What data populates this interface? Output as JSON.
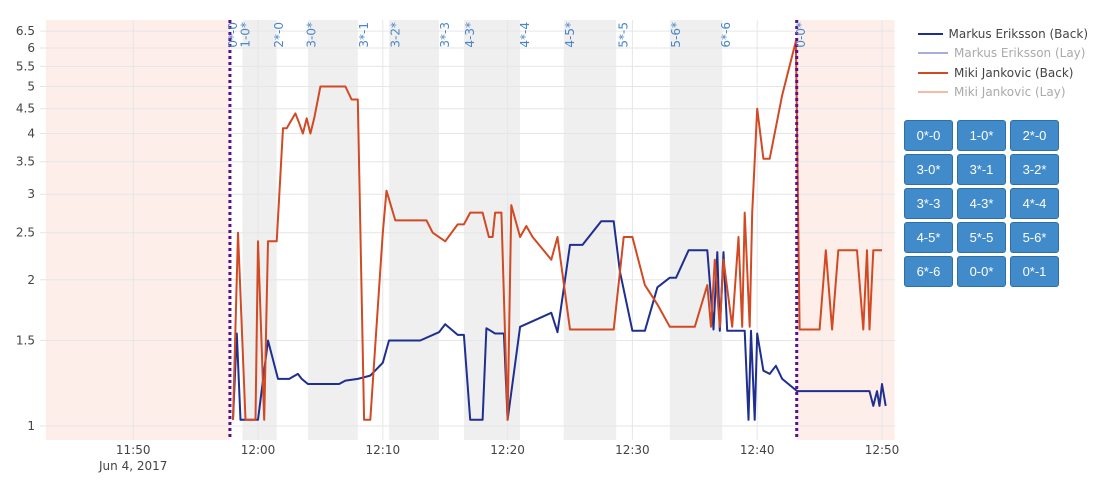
{
  "chart_data": {
    "type": "line",
    "y_scale": "log",
    "ylim": [
      0.97,
      6.8
    ],
    "y_ticks": [
      "1",
      "1.5",
      "2",
      "2.5",
      "3",
      "3.5",
      "4",
      "4.5",
      "5",
      "5.5",
      "6",
      "6.5"
    ],
    "x_ticks": [
      {
        "label": "11:50",
        "sublabel": "Jun 4, 2017",
        "t": "11:50"
      },
      {
        "label": "12:00",
        "t": "12:00"
      },
      {
        "label": "12:10",
        "t": "12:10"
      },
      {
        "label": "12:20",
        "t": "12:20"
      },
      {
        "label": "12:30",
        "t": "12:30"
      },
      {
        "label": "12:40",
        "t": "12:40"
      },
      {
        "label": "12:50",
        "t": "12:50"
      }
    ],
    "xlim": [
      "11:43",
      "12:51"
    ],
    "grid": true,
    "legend_position": "right",
    "inplay_markers": [
      "11:57:45",
      "12:43:10"
    ],
    "preplay_regions": [
      [
        "11:43",
        "11:57:45"
      ],
      [
        "12:43:10",
        "12:51"
      ]
    ],
    "shaded_regions": [
      [
        "11:58:45",
        "12:01:30"
      ],
      [
        "12:04",
        "12:08"
      ],
      [
        "12:10.5",
        "12:14.5"
      ],
      [
        "12:16.5",
        "12:21"
      ],
      [
        "12:24.5",
        "12:28.7"
      ],
      [
        "12:33",
        "12:37.2"
      ]
    ],
    "score_labels": [
      {
        "t": "11:58",
        "label": "0*-0"
      },
      {
        "t": "11:59",
        "label": "1-0*"
      },
      {
        "t": "12:01.7",
        "label": "2*-0"
      },
      {
        "t": "12:04.3",
        "label": "3-0*"
      },
      {
        "t": "12:08.5",
        "label": "3*-1"
      },
      {
        "t": "12:11",
        "label": "3-2*"
      },
      {
        "t": "12:15",
        "label": "3*-3"
      },
      {
        "t": "12:17",
        "label": "4-3*"
      },
      {
        "t": "12:21.4",
        "label": "4*-4"
      },
      {
        "t": "12:25",
        "label": "4-5*"
      },
      {
        "t": "12:29.3",
        "label": "5*-5"
      },
      {
        "t": "12:33.5",
        "label": "5-6*"
      },
      {
        "t": "12:37.5",
        "label": "6*-6"
      },
      {
        "t": "12:43.5",
        "label": "0-0*"
      }
    ],
    "series": [
      {
        "name": "Markus Eriksson (Back)",
        "color": "#1f2f8f",
        "points": [
          [
            "11:58",
            1.03
          ],
          [
            "11:58.3",
            1.55
          ],
          [
            "11:58.6",
            1.03
          ],
          [
            "12:00",
            1.03
          ],
          [
            "12:00.8",
            1.5
          ],
          [
            "12:01.6",
            1.25
          ],
          [
            "12:02.5",
            1.25
          ],
          [
            "12:03.2",
            1.28
          ],
          [
            "12:03.5",
            1.25
          ],
          [
            "12:04",
            1.22
          ],
          [
            "12:06.5",
            1.22
          ],
          [
            "12:07",
            1.24
          ],
          [
            "12:08",
            1.25
          ],
          [
            "12:09",
            1.27
          ],
          [
            "12:10",
            1.35
          ],
          [
            "12:10.5",
            1.5
          ],
          [
            "12:13",
            1.5
          ],
          [
            "12:14.5",
            1.56
          ],
          [
            "12:15",
            1.62
          ],
          [
            "12:16",
            1.54
          ],
          [
            "12:16.5",
            1.54
          ],
          [
            "12:17",
            1.03
          ],
          [
            "12:18",
            1.03
          ],
          [
            "12:18.3",
            1.59
          ],
          [
            "12:19",
            1.55
          ],
          [
            "12:19.7",
            1.55
          ],
          [
            "12:20",
            1.03
          ],
          [
            "12:21",
            1.6
          ],
          [
            "12:23.5",
            1.71
          ],
          [
            "12:24",
            1.56
          ],
          [
            "12:25",
            2.36
          ],
          [
            "12:26",
            2.36
          ],
          [
            "12:27.5",
            2.64
          ],
          [
            "12:28.5",
            2.64
          ],
          [
            "12:29",
            2.08
          ],
          [
            "12:30",
            1.57
          ],
          [
            "12:31",
            1.57
          ],
          [
            "12:32",
            1.93
          ],
          [
            "12:33",
            2.02
          ],
          [
            "12:33.5",
            2.02
          ],
          [
            "12:34.5",
            2.3
          ],
          [
            "12:36",
            2.3
          ],
          [
            "12:36.5",
            1.58
          ],
          [
            "12:36.8",
            2.28
          ],
          [
            "12:37",
            1.57
          ],
          [
            "12:37.3",
            2.28
          ],
          [
            "12:37.6",
            1.57
          ],
          [
            "12:39",
            1.57
          ],
          [
            "12:39.3",
            1.03
          ],
          [
            "12:39.5",
            1.57
          ],
          [
            "12:39.8",
            1.03
          ],
          [
            "12:40",
            1.55
          ],
          [
            "12:40.5",
            1.3
          ],
          [
            "12:41",
            1.28
          ],
          [
            "12:41.5",
            1.33
          ],
          [
            "12:42",
            1.25
          ],
          [
            "12:43.2",
            1.18
          ],
          [
            "12:48",
            1.18
          ],
          [
            "12:49",
            1.18
          ],
          [
            "12:49.3",
            1.1
          ],
          [
            "12:49.6",
            1.18
          ],
          [
            "12:49.8",
            1.1
          ],
          [
            "12:50",
            1.22
          ],
          [
            "12:50.3",
            1.1
          ]
        ]
      },
      {
        "name": "Markus Eriksson (Lay)",
        "color": "#a7acd8",
        "dim": true,
        "points": []
      },
      {
        "name": "Miki Jankovic (Back)",
        "color": "#d14a24",
        "points": [
          [
            "11:58",
            1.03
          ],
          [
            "11:58.4",
            2.5
          ],
          [
            "11:59",
            1.03
          ],
          [
            "11:59.8",
            1.03
          ],
          [
            "12:00",
            2.4
          ],
          [
            "12:00.5",
            1.03
          ],
          [
            "12:00.8",
            2.4
          ],
          [
            "12:01.5",
            2.4
          ],
          [
            "12:02",
            4.1
          ],
          [
            "12:02.3",
            4.1
          ],
          [
            "12:03",
            4.4
          ],
          [
            "12:03.3",
            4.2
          ],
          [
            "12:03.6",
            4.0
          ],
          [
            "12:03.9",
            4.3
          ],
          [
            "12:04.2",
            4.0
          ],
          [
            "12:04.5",
            4.3
          ],
          [
            "12:05",
            5.0
          ],
          [
            "12:07",
            5.0
          ],
          [
            "12:07.5",
            4.7
          ],
          [
            "12:08",
            4.7
          ],
          [
            "12:08.5",
            1.03
          ],
          [
            "12:09",
            1.03
          ],
          [
            "12:10",
            2.5
          ],
          [
            "12:10.3",
            3.05
          ],
          [
            "12:11",
            2.65
          ],
          [
            "12:13.5",
            2.65
          ],
          [
            "12:14",
            2.5
          ],
          [
            "12:15",
            2.4
          ],
          [
            "12:16",
            2.6
          ],
          [
            "12:16.5",
            2.6
          ],
          [
            "12:17",
            2.75
          ],
          [
            "12:18",
            2.75
          ],
          [
            "12:18.5",
            2.45
          ],
          [
            "12:18.8",
            2.45
          ],
          [
            "12:19",
            2.75
          ],
          [
            "12:19.5",
            2.75
          ],
          [
            "12:20",
            1.03
          ],
          [
            "12:20.3",
            2.85
          ],
          [
            "12:21",
            2.45
          ],
          [
            "12:21.5",
            2.58
          ],
          [
            "12:22",
            2.45
          ],
          [
            "12:23.5",
            2.2
          ],
          [
            "12:24",
            2.45
          ],
          [
            "12:25",
            1.58
          ],
          [
            "12:27.5",
            1.58
          ],
          [
            "12:28.5",
            1.58
          ],
          [
            "12:29.3",
            2.45
          ],
          [
            "12:30",
            2.45
          ],
          [
            "12:31",
            1.95
          ],
          [
            "12:32",
            1.78
          ],
          [
            "12:33",
            1.6
          ],
          [
            "12:34",
            1.6
          ],
          [
            "12:35",
            1.6
          ],
          [
            "12:36",
            1.95
          ],
          [
            "12:36.3",
            1.6
          ],
          [
            "12:36.6",
            2.2
          ],
          [
            "12:37",
            1.6
          ],
          [
            "12:37.3",
            2.2
          ],
          [
            "12:38",
            1.6
          ],
          [
            "12:38.5",
            2.45
          ],
          [
            "12:38.8",
            1.6
          ],
          [
            "12:39",
            2.75
          ],
          [
            "12:39.4",
            1.6
          ],
          [
            "12:39.6",
            2.75
          ],
          [
            "12:40",
            4.5
          ],
          [
            "12:40.5",
            3.55
          ],
          [
            "12:41",
            3.55
          ],
          [
            "12:42",
            4.8
          ],
          [
            "12:43.1",
            6.2
          ],
          [
            "12:43.4",
            1.58
          ],
          [
            "12:45",
            1.58
          ],
          [
            "12:45.5",
            2.3
          ],
          [
            "12:46",
            1.58
          ],
          [
            "12:46.5",
            2.3
          ],
          [
            "12:48",
            2.3
          ],
          [
            "12:48.5",
            1.58
          ],
          [
            "12:48.8",
            2.3
          ],
          [
            "12:49",
            1.58
          ],
          [
            "12:49.3",
            2.3
          ],
          [
            "12:50",
            2.3
          ]
        ]
      },
      {
        "name": "Miki Jankovic (Lay)",
        "color": "#f6b9a3",
        "dim": true,
        "points": []
      }
    ]
  },
  "buttons": [
    "0*-0",
    "1-0*",
    "2*-0",
    "3-0*",
    "3*-1",
    "3-2*",
    "3*-3",
    "4-3*",
    "4*-4",
    "4-5*",
    "5*-5",
    "5-6*",
    "6*-6",
    "0-0*",
    "0*-1"
  ]
}
